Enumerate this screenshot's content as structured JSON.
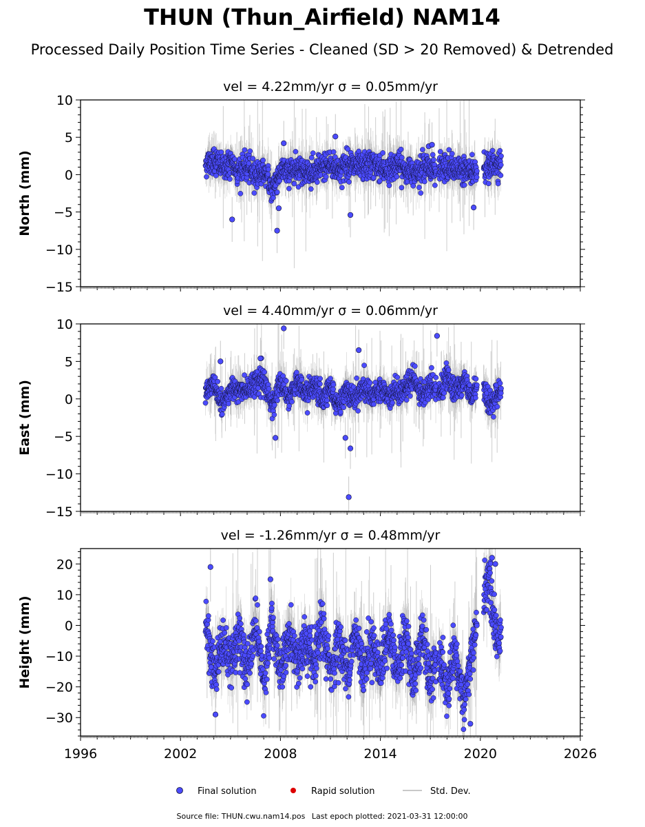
{
  "title": "THUN (Thun_Airfield) NAM14",
  "subtitle": "Processed Daily Position Time Series - Cleaned (SD > 20 Removed) & Detrended",
  "footer": {
    "source_label": "Source file:",
    "source_file": "THUN.cwu.nam14.pos",
    "last_epoch_label": "Last epoch plotted:",
    "last_epoch": "2021-03-31 12:00:00"
  },
  "legend": {
    "final": "Final solution",
    "rapid": "Rapid solution",
    "stddev": "Std. Dev."
  },
  "colors": {
    "final": "#4b4bff",
    "final_edge": "#111133",
    "rapid": "#dd0000",
    "stddev": "#c8c8c8",
    "stddev_dense": "#555555"
  },
  "chart_data": [
    {
      "type": "scatter",
      "component": "north",
      "title": "vel = 4.22mm/yr   σ = 0.05mm/yr",
      "ylabel": "North (mm)",
      "xlim": [
        1996,
        2026
      ],
      "ylim": [
        -15,
        10
      ],
      "yticks": [
        10,
        5,
        0,
        -5,
        -10,
        -15
      ],
      "xticks": [
        1996,
        2002,
        2008,
        2014,
        2020,
        2026
      ],
      "data_span": [
        2003.5,
        2021.25
      ],
      "gaps": [
        [
          2017.35,
          2017.5
        ],
        [
          2019.8,
          2020.2
        ]
      ],
      "series": [
        {
          "x": [
            2003.5,
            2004.0,
            2004.5,
            2005.0,
            2005.5,
            2006.0,
            2006.5,
            2007.0,
            2007.5,
            2008.0,
            2008.5,
            2009.0,
            2009.5,
            2010.0,
            2010.5,
            2011.0,
            2011.5,
            2012.0,
            2012.5,
            2013.0,
            2013.5,
            2014.0,
            2014.5,
            2015.0,
            2015.5,
            2016.0,
            2016.5,
            2017.0,
            2017.5,
            2018.0,
            2018.5,
            2019.0,
            2019.5,
            2020.0,
            2020.5,
            2021.0
          ],
          "y": [
            1.5,
            2.0,
            1.0,
            1.5,
            0.5,
            1.0,
            0.0,
            0.5,
            -2.0,
            0.5,
            0.5,
            1.0,
            0.5,
            0.0,
            1.0,
            1.5,
            0.5,
            1.5,
            1.0,
            1.0,
            1.5,
            1.0,
            0.5,
            1.5,
            0.5,
            0.5,
            1.0,
            1.0,
            0.5,
            1.0,
            0.5,
            1.0,
            0.0,
            1.0,
            1.0,
            1.5
          ]
        }
      ],
      "outliers": {
        "x": [
          2005.1,
          2007.8,
          2007.9,
          2008.2,
          2011.3,
          2012.2,
          2016.9,
          2017.1,
          2019.6
        ],
        "y": [
          -6.0,
          -7.5,
          -4.5,
          4.2,
          5.1,
          -5.4,
          3.8,
          4.0,
          -4.4
        ]
      }
    },
    {
      "type": "scatter",
      "component": "east",
      "title": "vel = 4.40mm/yr   σ = 0.06mm/yr",
      "ylabel": "East (mm)",
      "xlim": [
        1996,
        2026
      ],
      "ylim": [
        -15,
        10
      ],
      "yticks": [
        10,
        5,
        0,
        -5,
        -10,
        -15
      ],
      "xticks": [
        1996,
        2002,
        2008,
        2014,
        2020,
        2026
      ],
      "data_span": [
        2003.5,
        2021.25
      ],
      "gaps": [
        [
          2017.35,
          2017.5
        ],
        [
          2019.8,
          2020.2
        ]
      ],
      "series": [
        {
          "x": [
            2003.5,
            2004.0,
            2004.5,
            2005.0,
            2005.5,
            2006.0,
            2006.5,
            2007.0,
            2007.5,
            2008.0,
            2008.5,
            2009.0,
            2009.5,
            2010.0,
            2010.5,
            2011.0,
            2011.5,
            2012.0,
            2012.5,
            2013.0,
            2013.5,
            2014.0,
            2014.5,
            2015.0,
            2015.5,
            2016.0,
            2016.5,
            2017.0,
            2017.5,
            2018.0,
            2018.5,
            2019.0,
            2019.5,
            2020.0,
            2020.5,
            2021.0
          ],
          "y": [
            0.5,
            2.5,
            -1.0,
            1.5,
            1.0,
            1.5,
            2.0,
            2.5,
            -1.0,
            2.5,
            0.0,
            2.5,
            0.5,
            2.0,
            -0.5,
            1.5,
            -1.0,
            1.5,
            0.0,
            1.5,
            0.5,
            1.5,
            0.5,
            1.0,
            1.5,
            2.5,
            0.5,
            2.0,
            1.0,
            3.0,
            1.0,
            2.5,
            0.0,
            3.5,
            -1.0,
            0.5
          ]
        }
      ],
      "outliers": {
        "x": [
          2007.7,
          2008.2,
          2011.9,
          2012.2,
          2012.1,
          2012.7,
          2017.4,
          2004.4,
          2006.8
        ],
        "y": [
          -5.2,
          9.4,
          -5.2,
          -6.6,
          -13.1,
          6.5,
          8.4,
          5.0,
          5.4
        ]
      }
    },
    {
      "type": "scatter",
      "component": "height",
      "title": "vel = -1.26mm/yr   σ = 0.48mm/yr",
      "ylabel": "Height (mm)",
      "xlim": [
        1996,
        2026
      ],
      "ylim": [
        -36,
        25
      ],
      "yticks": [
        20,
        10,
        0,
        -10,
        -20,
        -30
      ],
      "xticks": [
        1996,
        2002,
        2008,
        2014,
        2020,
        2026
      ],
      "data_span": [
        2003.5,
        2021.25
      ],
      "gaps": [
        [
          2017.35,
          2017.5
        ],
        [
          2019.8,
          2020.2
        ]
      ],
      "series": [
        {
          "x": [
            2003.5,
            2004.0,
            2004.5,
            2005.0,
            2005.5,
            2006.0,
            2006.5,
            2007.0,
            2007.5,
            2008.0,
            2008.5,
            2009.0,
            2009.5,
            2010.0,
            2010.5,
            2011.0,
            2011.5,
            2012.0,
            2012.5,
            2013.0,
            2013.5,
            2014.0,
            2014.5,
            2015.0,
            2015.5,
            2016.0,
            2016.5,
            2017.0,
            2017.5,
            2018.0,
            2018.5,
            2019.0,
            2019.5,
            2020.0,
            2020.5,
            2021.0
          ],
          "y": [
            0.0,
            -15.0,
            -5.0,
            -12.0,
            -3.0,
            -15.0,
            2.0,
            -18.0,
            0.0,
            -14.0,
            -3.0,
            -12.0,
            -5.0,
            -14.0,
            0.0,
            -15.0,
            -5.0,
            -15.0,
            -3.0,
            -14.0,
            -5.0,
            -15.0,
            -2.0,
            -16.0,
            -3.0,
            -18.0,
            -2.0,
            -20.0,
            -8.0,
            -22.0,
            -10.0,
            -25.0,
            -10.0,
            8.0,
            15.0,
            -5.0
          ]
        }
      ],
      "outliers": {
        "x": [
          2003.8,
          2004.1,
          2007.4,
          2019.4,
          2020.7,
          2020.9
        ],
        "y": [
          19.0,
          -29.0,
          15.0,
          -32.0,
          22.0,
          20.0
        ]
      }
    }
  ]
}
